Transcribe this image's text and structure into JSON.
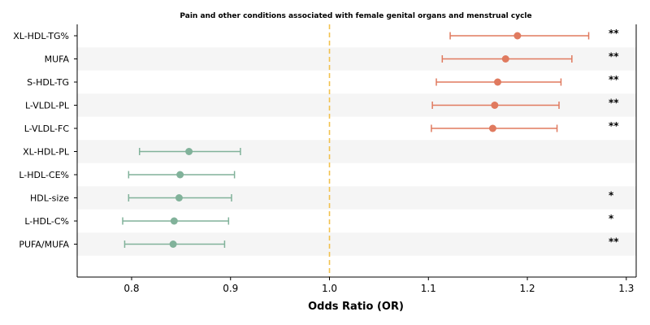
{
  "chart_data": {
    "type": "forest",
    "title": "Pain and other conditions associated with female genital organs and menstrual cycle",
    "xlabel": "Odds Ratio (OR)",
    "ylabel": "",
    "xlim": [
      0.745,
      1.31
    ],
    "xticks": [
      "0.8",
      "0.9",
      "1.0",
      "1.1",
      "1.2",
      "1.3"
    ],
    "reference_line": 1.0,
    "grid": false,
    "row_striping": true,
    "colors": {
      "increased": "#e07a5f",
      "decreased": "#81b29a",
      "reference": "#f2c14e",
      "stripe": "#f5f5f5"
    },
    "rows": [
      {
        "label": "XL-HDL-TG%",
        "or": 1.19,
        "lower": 1.122,
        "upper": 1.262,
        "sig": "**",
        "direction": "increased"
      },
      {
        "label": "MUFA",
        "or": 1.178,
        "lower": 1.114,
        "upper": 1.245,
        "sig": "**",
        "direction": "increased"
      },
      {
        "label": "S-HDL-TG",
        "or": 1.17,
        "lower": 1.108,
        "upper": 1.234,
        "sig": "**",
        "direction": "increased"
      },
      {
        "label": "L-VLDL-PL",
        "or": 1.167,
        "lower": 1.104,
        "upper": 1.232,
        "sig": "**",
        "direction": "increased"
      },
      {
        "label": "L-VLDL-FC",
        "or": 1.165,
        "lower": 1.103,
        "upper": 1.23,
        "sig": "**",
        "direction": "increased"
      },
      {
        "label": "XL-HDL-PL",
        "or": 0.858,
        "lower": 0.808,
        "upper": 0.91,
        "sig": "",
        "direction": "decreased"
      },
      {
        "label": "L-HDL-CE%",
        "or": 0.849,
        "lower": 0.797,
        "upper": 0.904,
        "sig": "",
        "direction": "decreased"
      },
      {
        "label": "HDL-size",
        "or": 0.848,
        "lower": 0.797,
        "upper": 0.901,
        "sig": "*",
        "direction": "decreased"
      },
      {
        "label": "L-HDL-C%",
        "or": 0.843,
        "lower": 0.791,
        "upper": 0.898,
        "sig": "*",
        "direction": "decreased"
      },
      {
        "label": "PUFA/MUFA",
        "or": 0.842,
        "lower": 0.793,
        "upper": 0.894,
        "sig": "**",
        "direction": "decreased"
      }
    ]
  }
}
